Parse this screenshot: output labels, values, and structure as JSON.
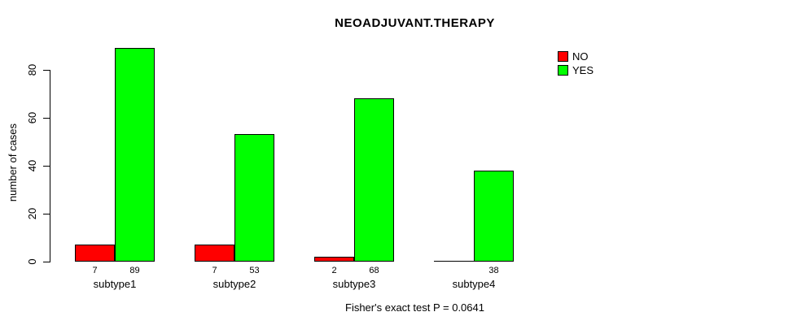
{
  "chart_data": {
    "type": "bar",
    "title": "NEOADJUVANT.THERAPY",
    "xlabel": "",
    "ylabel": "number of cases",
    "categories": [
      "subtype1",
      "subtype2",
      "subtype3",
      "subtype4"
    ],
    "series": [
      {
        "name": "NO",
        "color": "#FF0000",
        "values": [
          7,
          7,
          2,
          0
        ],
        "labels": [
          "7",
          "7",
          "2",
          ""
        ]
      },
      {
        "name": "YES",
        "color": "#00FF00",
        "values": [
          89,
          53,
          68,
          38
        ],
        "labels": [
          "89",
          "53",
          "68",
          "38"
        ]
      }
    ],
    "yticks": [
      0,
      20,
      40,
      60,
      80
    ],
    "ylim": [
      0,
      89
    ],
    "grid": false,
    "legend_position": "top-right",
    "annotation": "Fisher's exact test P = 0.0641"
  },
  "colors": {
    "background": "#FFFFFF",
    "axis": "#000000",
    "no": "#FF0000",
    "yes": "#00FF00"
  }
}
